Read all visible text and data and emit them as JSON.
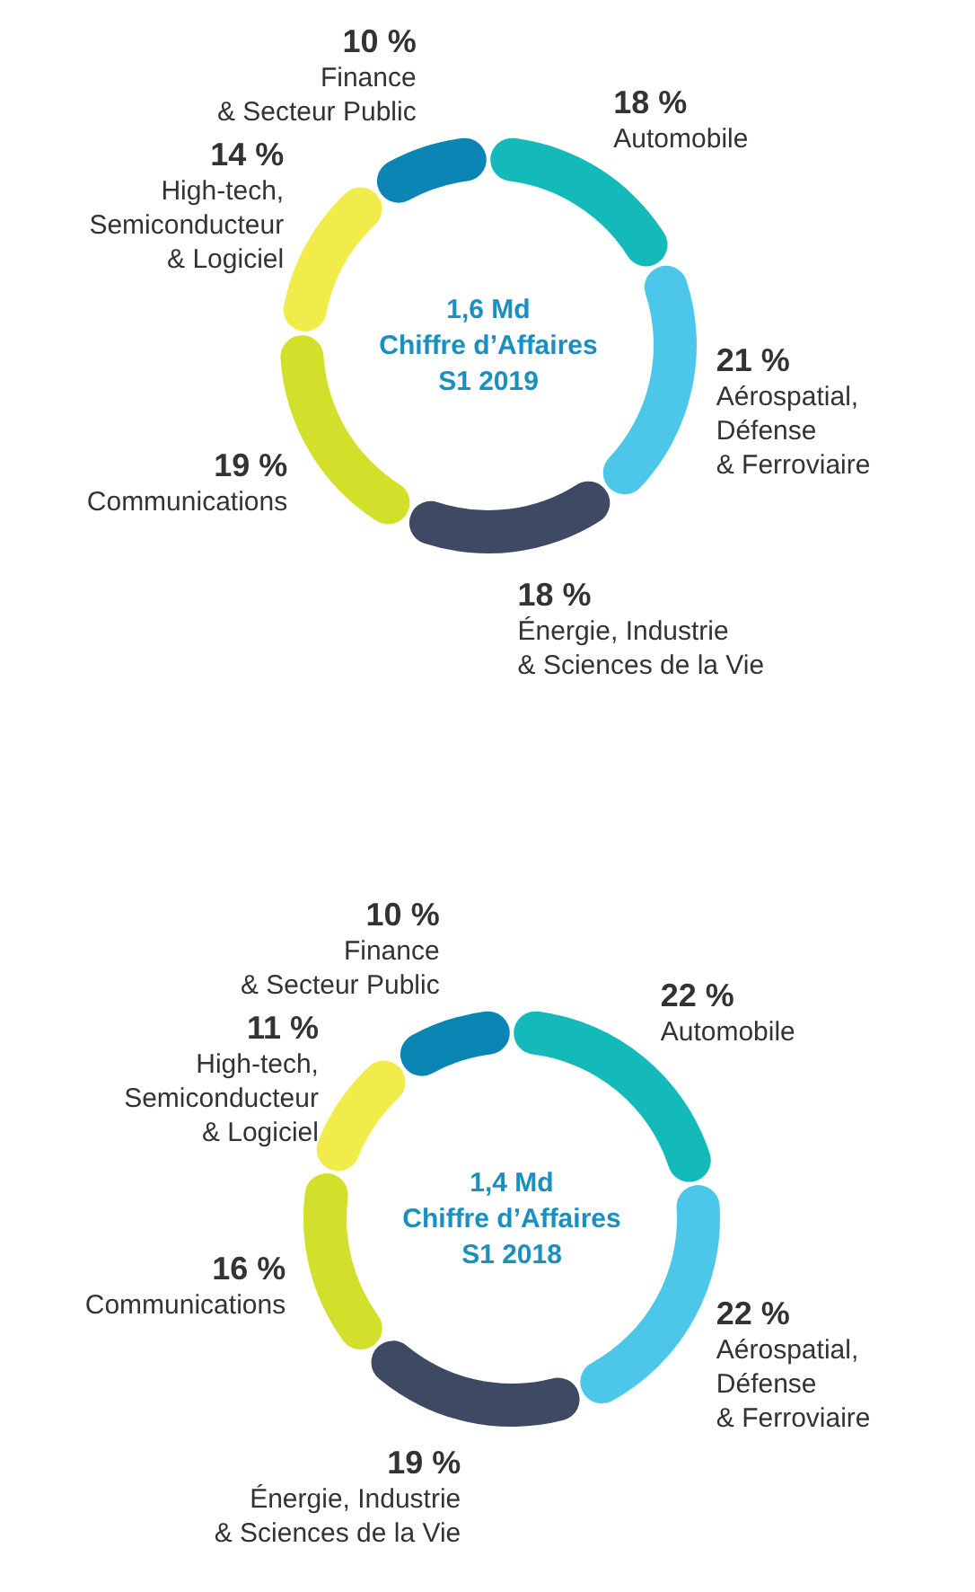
{
  "chart_data": [
    {
      "type": "donut",
      "title": "1,6 Md\nChiffre d’Affaires\nS1 2019",
      "categories": [
        "Automobile",
        "Aérospatial,\nDéfense\n& Ferroviaire",
        "Énergie, Industrie\n& Sciences de la Vie",
        "Communications",
        "High-tech,\nSemiconducteur\n& Logiciel",
        "Finance\n& Secteur Public"
      ],
      "values": [
        18,
        21,
        18,
        19,
        14,
        10
      ],
      "colors": [
        "#14b9b9",
        "#4cc7ea",
        "#3e4a64",
        "#d3e02b",
        "#f2ec4b",
        "#0b86b4"
      ],
      "value_labels": [
        "18 %",
        "21 %",
        "18 %",
        "19 %",
        "14 %",
        "10 %"
      ]
    },
    {
      "type": "donut",
      "title": "1,4 Md\nChiffre d’Affaires\nS1 2018",
      "categories": [
        "Automobile",
        "Aérospatial,\nDéfense\n& Ferroviaire",
        "Énergie, Industrie\n& Sciences de la Vie",
        "Communications",
        "High-tech,\nSemiconducteur\n& Logiciel",
        "Finance\n& Secteur Public"
      ],
      "values": [
        22,
        22,
        19,
        16,
        11,
        10
      ],
      "colors": [
        "#14b9b9",
        "#4cc7ea",
        "#3e4a64",
        "#d3e02b",
        "#f2ec4b",
        "#0b86b4"
      ],
      "value_labels": [
        "22 %",
        "22 %",
        "19 %",
        "16 %",
        "11 %",
        "10 %"
      ]
    }
  ]
}
